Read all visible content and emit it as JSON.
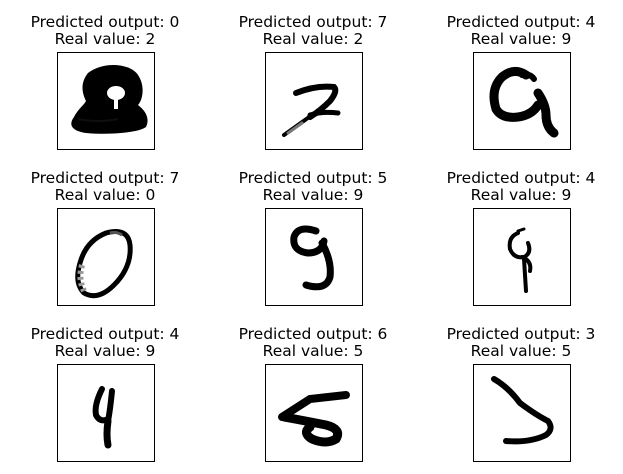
{
  "chart_data": {
    "type": "image-grid",
    "rows": 3,
    "cols": 3,
    "pred_prefix": "Predicted output: ",
    "real_prefix": "Real value: ",
    "samples": [
      {
        "predicted_label": "Predicted output: 0",
        "real_label": "Real value: 2",
        "predicted": 0,
        "real": 2,
        "glyph": "blob-two-icon"
      },
      {
        "predicted_label": "Predicted output: 7",
        "real_label": "Real value: 2",
        "predicted": 7,
        "real": 2,
        "glyph": "slanted-two-icon"
      },
      {
        "predicted_label": "Predicted output: 4",
        "real_label": "Real value: 9",
        "predicted": 4,
        "real": 9,
        "glyph": "open-nine-icon"
      },
      {
        "predicted_label": "Predicted output: 7",
        "real_label": "Real value: 0",
        "predicted": 7,
        "real": 0,
        "glyph": "faint-zero-icon"
      },
      {
        "predicted_label": "Predicted output: 5",
        "real_label": "Real value: 9",
        "predicted": 5,
        "real": 9,
        "glyph": "curly-nine-icon"
      },
      {
        "predicted_label": "Predicted output: 4",
        "real_label": "Real value: 9",
        "predicted": 4,
        "real": 9,
        "glyph": "thin-nine-icon"
      },
      {
        "predicted_label": "Predicted output: 4",
        "real_label": "Real value: 9",
        "predicted": 4,
        "real": 9,
        "glyph": "narrow-nine-icon"
      },
      {
        "predicted_label": "Predicted output: 6",
        "real_label": "Real value: 5",
        "predicted": 6,
        "real": 5,
        "glyph": "flat-five-icon"
      },
      {
        "predicted_label": "Predicted output: 3",
        "real_label": "Real value: 5",
        "predicted": 3,
        "real": 5,
        "glyph": "hook-five-icon"
      }
    ]
  },
  "colors": {
    "ink": "#000000",
    "background": "#ffffff",
    "frame": "#000000"
  }
}
